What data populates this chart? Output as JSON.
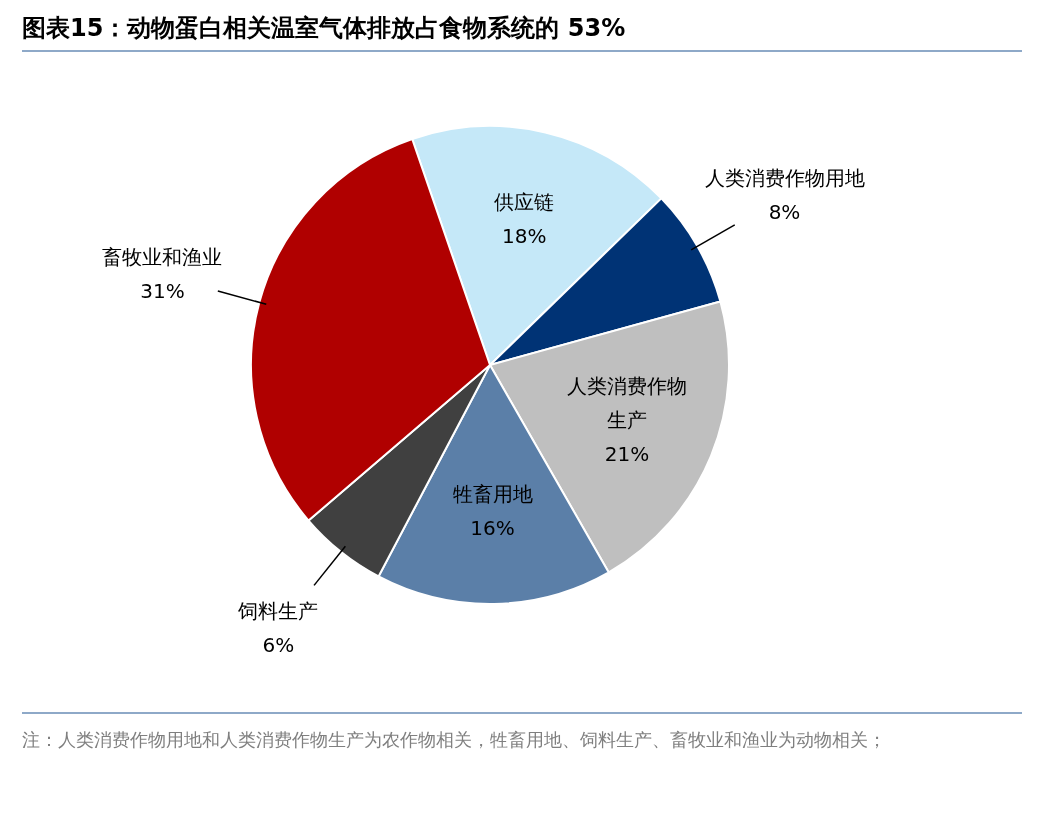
{
  "chart_data": {
    "type": "pie",
    "title": "图表15：动物蛋白相关温室气体排放占食物系统的 53%",
    "categories": [
      "供应链",
      "人类消费作物用地",
      "人类消费作物生产",
      "牲畜用地",
      "饲料生产",
      "畜牧业和渔业"
    ],
    "values": [
      18,
      8,
      21,
      16,
      6,
      31
    ],
    "colors": [
      "#c5e8f8",
      "#003375",
      "#bfbfbf",
      "#5b7fa8",
      "#404040",
      "#b00000"
    ],
    "legend": false,
    "value_labels": [
      "18%",
      "8%",
      "21%",
      "16%",
      "6%",
      "31%"
    ],
    "annotations": [
      "注：人类消费作物用地和人类消费作物生产为农作物相关，牲畜用地、饲料生产、畜牧业和渔业为动物相关；"
    ]
  }
}
